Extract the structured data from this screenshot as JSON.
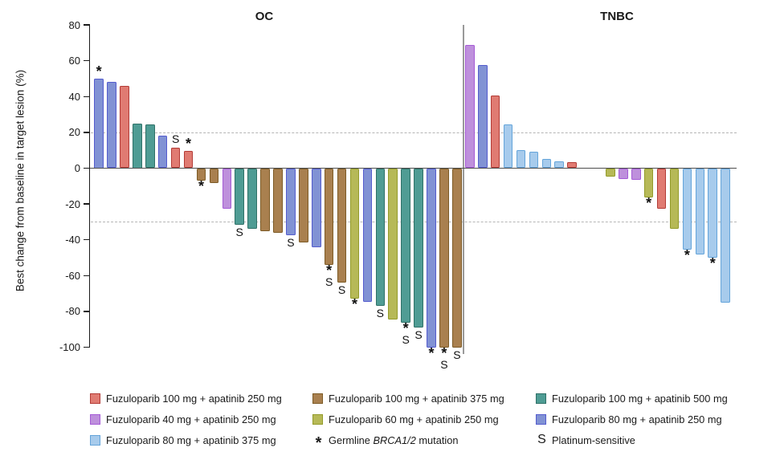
{
  "panel_titles": {
    "oc": "OC",
    "tnbc": "TNBC"
  },
  "y_axis": {
    "label": "Best change from baseline in target lesion (%)",
    "ticks": [
      80,
      60,
      40,
      20,
      0,
      -20,
      -40,
      -60,
      -80,
      -100
    ],
    "max": 80,
    "min": -100
  },
  "reference_lines": [
    20,
    -30
  ],
  "colors": {
    "red": {
      "fill": "#E07B72",
      "border": "#B33B36"
    },
    "brown": {
      "fill": "#A9804F",
      "border": "#7D5B26"
    },
    "teal": {
      "fill": "#4F9C94",
      "border": "#2F7168"
    },
    "purple": {
      "fill": "#BE90DC",
      "border": "#A55BD6"
    },
    "olive": {
      "fill": "#B6B957",
      "border": "#939B2A"
    },
    "blue": {
      "fill": "#8192D4",
      "border": "#545CCE"
    },
    "lightblue": {
      "fill": "#A7CBEC",
      "border": "#64A4DA"
    }
  },
  "marker_meaning": {
    "star": "Germline BRCA1/2 mutation",
    "S": "Platinum-sensitive"
  },
  "chart_data": {
    "type": "bar",
    "subtype": "waterfall",
    "ylabel": "Best change from baseline in target lesion (%)",
    "ylim": [
      -100,
      80
    ],
    "grid": false,
    "panels": [
      {
        "name": "OC",
        "bars": [
          {
            "value": 50,
            "color": "blue",
            "marks": [
              "*"
            ]
          },
          {
            "value": 48,
            "color": "blue",
            "marks": []
          },
          {
            "value": 46,
            "color": "red",
            "marks": []
          },
          {
            "value": 25,
            "color": "teal",
            "marks": []
          },
          {
            "value": 24.5,
            "color": "teal",
            "marks": []
          },
          {
            "value": 18,
            "color": "blue",
            "marks": []
          },
          {
            "value": 11.5,
            "color": "red",
            "marks": [
              "S"
            ]
          },
          {
            "value": 9.5,
            "color": "red",
            "marks": [
              "*"
            ]
          },
          {
            "value": -7,
            "color": "brown",
            "marks": [
              "*"
            ]
          },
          {
            "value": -8.5,
            "color": "brown",
            "marks": []
          },
          {
            "value": -22.5,
            "color": "purple",
            "marks": []
          },
          {
            "value": -31.5,
            "color": "teal",
            "marks": [
              "S"
            ]
          },
          {
            "value": -34,
            "color": "teal",
            "marks": []
          },
          {
            "value": -35,
            "color": "brown",
            "marks": []
          },
          {
            "value": -36,
            "color": "brown",
            "marks": []
          },
          {
            "value": -37.5,
            "color": "blue",
            "marks": [
              "S"
            ]
          },
          {
            "value": -41.5,
            "color": "brown",
            "marks": []
          },
          {
            "value": -44,
            "color": "blue",
            "marks": []
          },
          {
            "value": -54,
            "color": "brown",
            "marks": [
              "*",
              "S"
            ]
          },
          {
            "value": -64,
            "color": "brown",
            "marks": [
              "S"
            ]
          },
          {
            "value": -73,
            "color": "olive",
            "marks": [
              "*"
            ]
          },
          {
            "value": -74.5,
            "color": "blue",
            "marks": []
          },
          {
            "value": -77,
            "color": "teal",
            "marks": [
              "S"
            ]
          },
          {
            "value": -84.5,
            "color": "olive",
            "marks": []
          },
          {
            "value": -86.5,
            "color": "teal",
            "marks": [
              "*",
              "S"
            ]
          },
          {
            "value": -89,
            "color": "teal",
            "marks": [
              "S"
            ]
          },
          {
            "value": -100,
            "color": "blue",
            "marks": [
              "*"
            ]
          },
          {
            "value": -100,
            "color": "brown",
            "marks": [
              "*",
              "S"
            ]
          },
          {
            "value": -100,
            "color": "brown",
            "marks": [
              "S"
            ]
          }
        ]
      },
      {
        "name": "TNBC",
        "bars": [
          {
            "value": 69,
            "color": "purple",
            "marks": []
          },
          {
            "value": 57.5,
            "color": "blue",
            "marks": []
          },
          {
            "value": 40.5,
            "color": "red",
            "marks": []
          },
          {
            "value": 24.5,
            "color": "lightblue",
            "marks": []
          },
          {
            "value": 10,
            "color": "lightblue",
            "marks": []
          },
          {
            "value": 9,
            "color": "lightblue",
            "marks": []
          },
          {
            "value": 5,
            "color": "lightblue",
            "marks": []
          },
          {
            "value": 4,
            "color": "lightblue",
            "marks": []
          },
          {
            "value": 3.5,
            "color": "red",
            "marks": []
          },
          {
            "value": 0,
            "color": null,
            "marks": []
          },
          {
            "value": 0,
            "color": null,
            "marks": []
          },
          {
            "value": -4.5,
            "color": "olive",
            "marks": []
          },
          {
            "value": -6,
            "color": "purple",
            "marks": []
          },
          {
            "value": -6.5,
            "color": "purple",
            "marks": []
          },
          {
            "value": -16.5,
            "color": "olive",
            "marks": [
              "*"
            ]
          },
          {
            "value": -22.5,
            "color": "red",
            "marks": []
          },
          {
            "value": -34,
            "color": "olive",
            "marks": []
          },
          {
            "value": -45.5,
            "color": "lightblue",
            "marks": [
              "*"
            ]
          },
          {
            "value": -48,
            "color": "lightblue",
            "marks": []
          },
          {
            "value": -50,
            "color": "lightblue",
            "marks": [
              "*"
            ]
          },
          {
            "value": -75,
            "color": "lightblue",
            "marks": []
          }
        ]
      }
    ]
  },
  "legend": {
    "columns": [
      [
        {
          "swatch": "red",
          "label": "Fuzuloparib 100 mg + apatinib 250 mg"
        },
        {
          "swatch": "purple",
          "label": "Fuzuloparib 40 mg + apatinib 250 mg"
        },
        {
          "swatch": "lightblue",
          "label": "Fuzuloparib 80 mg + apatinib 375 mg"
        }
      ],
      [
        {
          "swatch": "brown",
          "label": "Fuzuloparib 100 mg + apatinib 375 mg"
        },
        {
          "swatch": "olive",
          "label": "Fuzuloparib 60 mg + apatinib 250 mg"
        },
        {
          "glyph": "*",
          "label": "Germline BRCA1/2 mutation",
          "italic": "BRCA1/2"
        }
      ],
      [
        {
          "swatch": "teal",
          "label": "Fuzuloparib 100 mg + apatinib 500 mg"
        },
        {
          "swatch": "blue",
          "label": "Fuzuloparib 80 mg + apatinib 250 mg"
        },
        {
          "glyph": "S",
          "label": "Platinum-sensitive"
        }
      ]
    ]
  }
}
